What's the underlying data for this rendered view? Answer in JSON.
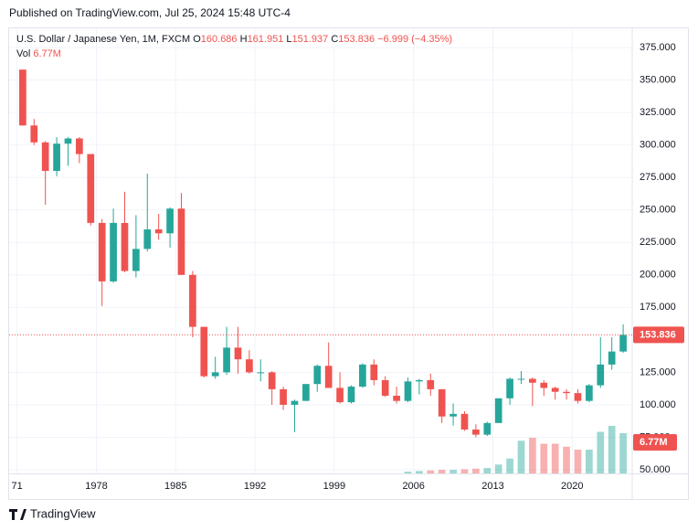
{
  "published": "Published on TradingView.com, Jul 25, 2024 15:48 UTC-4",
  "brand": "TradingView",
  "chart_data": {
    "type": "candlestick",
    "legend": {
      "symbol": "U.S. Dollar / Japanese Yen, 1M, FXCM",
      "fields": [
        {
          "label": "O",
          "value": 160.686
        },
        {
          "label": "H",
          "value": 161.951
        },
        {
          "label": "L",
          "value": 151.937
        },
        {
          "label": "C",
          "value": 153.836
        }
      ],
      "change": "−6.999 (−4.35%)",
      "volume_label": "Vol",
      "volume_value": "6.77M"
    },
    "last_price": 153.836,
    "last_volume_label": "6.77M",
    "up_color": "#26a69a",
    "down_color": "#ef5350",
    "x": [
      1971,
      1972,
      1973,
      1974,
      1975,
      1976,
      1977,
      1978,
      1979,
      1980,
      1981,
      1982,
      1983,
      1984,
      1985,
      1986,
      1987,
      1988,
      1989,
      1990,
      1991,
      1992,
      1993,
      1994,
      1995,
      1996,
      1997,
      1998,
      1999,
      2000,
      2001,
      2002,
      2003,
      2004,
      2005,
      2006,
      2007,
      2008,
      2009,
      2010,
      2011,
      2012,
      2013,
      2014,
      2015,
      2016,
      2017,
      2018,
      2019,
      2020,
      2021,
      2022,
      2023,
      2024
    ],
    "open": [
      358,
      315,
      302,
      280,
      301,
      305,
      293,
      240,
      195,
      240,
      203,
      220,
      235,
      232,
      251,
      200,
      160,
      122,
      125,
      144,
      135,
      125,
      125,
      112,
      100,
      103,
      116,
      130,
      113,
      102,
      114,
      131,
      119,
      107,
      103,
      118,
      119,
      112,
      91,
      93,
      81,
      77,
      86,
      105,
      120,
      120,
      117,
      113,
      110,
      109,
      103,
      115,
      131,
      141
    ],
    "high": [
      358,
      320,
      303,
      306,
      306,
      306,
      293,
      243,
      251,
      264,
      246,
      278,
      247,
      252,
      263,
      203,
      160,
      137,
      160,
      160,
      142,
      135,
      126,
      114,
      104,
      116,
      131,
      148,
      125,
      115,
      132,
      135,
      122,
      114,
      121,
      120,
      124,
      112,
      101,
      95,
      85,
      87,
      105,
      121,
      126,
      121,
      119,
      114,
      112,
      112,
      116,
      152,
      152,
      161.951
    ],
    "low": [
      315,
      300,
      254,
      276,
      284,
      286,
      238,
      176,
      194,
      202,
      198,
      218,
      227,
      221,
      200,
      152,
      121,
      120,
      123,
      124,
      124,
      118,
      100,
      96,
      79,
      103,
      110,
      113,
      101,
      101,
      113,
      115,
      106,
      101,
      102,
      108,
      107,
      86,
      84,
      80,
      75,
      76,
      86,
      100,
      116,
      99,
      107,
      104,
      104,
      101,
      102,
      113,
      127,
      140
    ],
    "close": [
      315,
      302,
      280,
      301,
      305,
      293,
      240,
      195,
      240,
      203,
      220,
      235,
      232,
      251,
      200,
      160,
      122,
      125,
      144,
      135,
      125,
      125,
      112,
      100,
      103,
      116,
      130,
      113,
      102,
      114,
      131,
      119,
      107,
      103,
      118,
      119,
      112,
      91,
      93,
      81,
      77,
      86,
      105,
      120,
      120,
      117,
      113,
      110,
      109,
      103,
      115,
      131,
      141,
      153.836
    ],
    "volume": [
      null,
      null,
      null,
      null,
      null,
      null,
      null,
      null,
      null,
      null,
      null,
      null,
      null,
      null,
      null,
      null,
      null,
      null,
      null,
      null,
      null,
      null,
      null,
      null,
      null,
      null,
      null,
      null,
      null,
      null,
      null,
      null,
      null,
      null,
      0.3,
      0.4,
      0.5,
      0.6,
      0.6,
      0.7,
      0.8,
      0.9,
      1.5,
      2.5,
      5.5,
      6,
      5,
      5,
      4.5,
      4,
      4,
      7,
      8,
      6.77
    ],
    "xlim": [
      1970.3,
      2025.3
    ],
    "ylim": [
      50,
      375
    ],
    "yticks": [
      {
        "value": 50,
        "label": "50.000"
      },
      {
        "value": 75,
        "label": "75.000"
      },
      {
        "value": 100,
        "label": "100.000"
      },
      {
        "value": 125,
        "label": "125.000"
      },
      {
        "value": 175,
        "label": "175.000"
      },
      {
        "value": 200,
        "label": "200.000"
      },
      {
        "value": 225,
        "label": "225.000"
      },
      {
        "value": 250,
        "label": "250.000"
      },
      {
        "value": 275,
        "label": "275.000"
      },
      {
        "value": 300,
        "label": "300.000"
      },
      {
        "value": 325,
        "label": "325.000"
      },
      {
        "value": 350,
        "label": "350.000"
      },
      {
        "value": 375,
        "label": "375.000"
      }
    ],
    "xticks": [
      {
        "value": 1971,
        "label": "71"
      },
      1978,
      1985,
      1992,
      1999,
      2006,
      2013,
      2020
    ],
    "grid": true
  }
}
